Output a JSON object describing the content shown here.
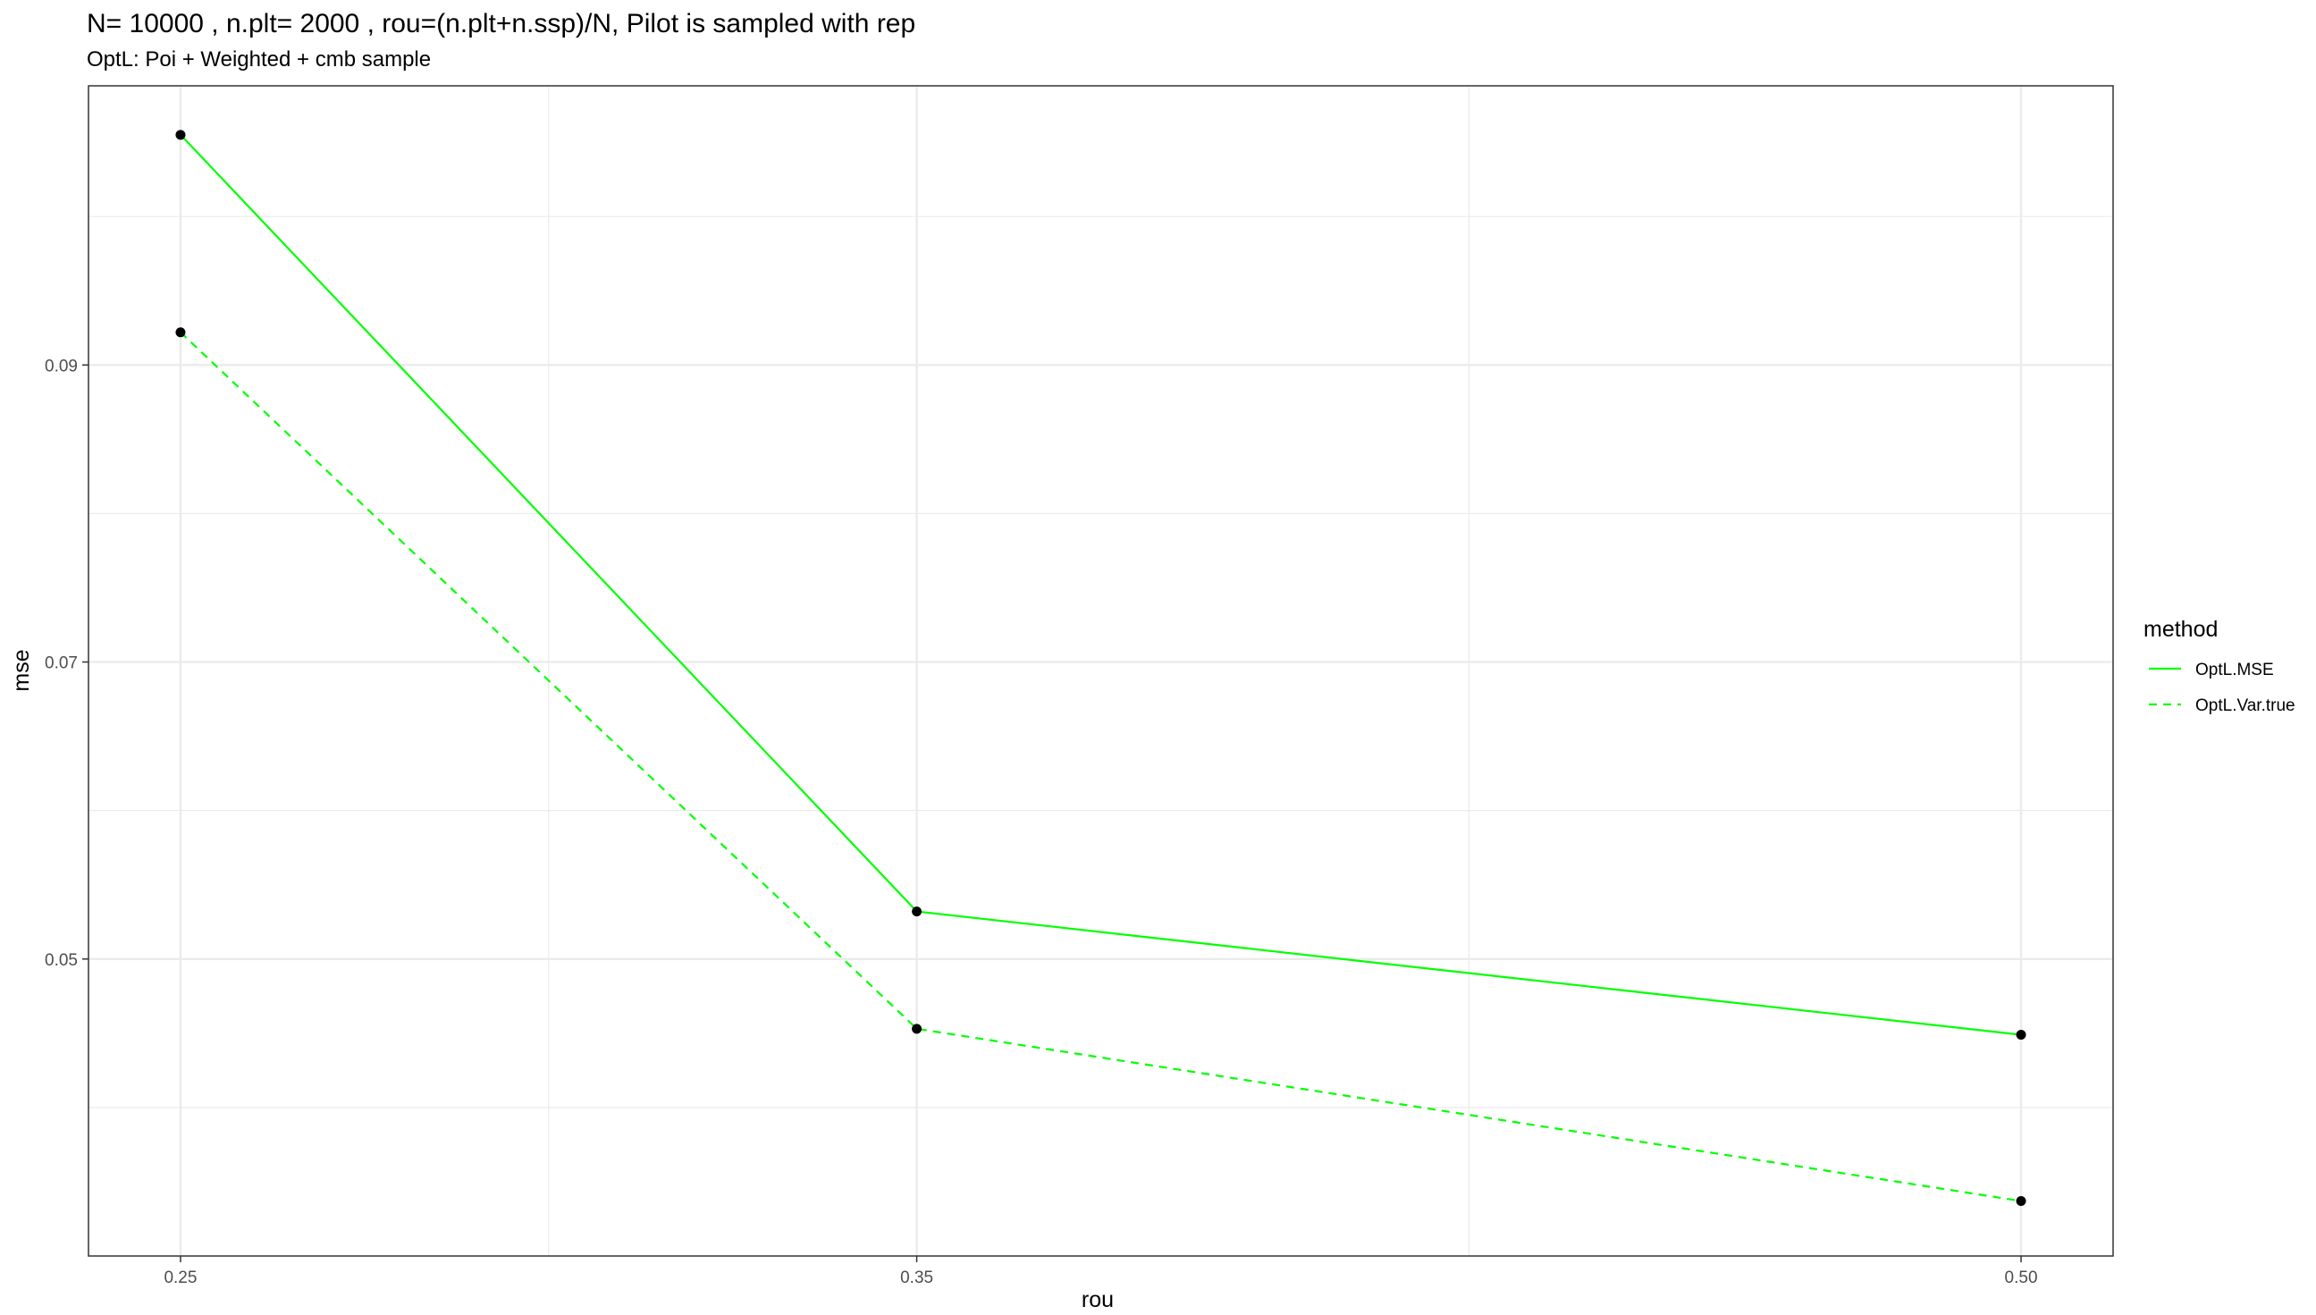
{
  "chart_data": {
    "type": "line",
    "title": "N= 10000 , n.plt= 2000  , rou=(n.plt+n.ssp)/N,  Pilot is sampled with rep",
    "subtitle": "OptL: Poi + Weighted + cmb sample",
    "xlabel": "rou",
    "ylabel": "mse",
    "x": [
      0.25,
      0.35,
      0.5
    ],
    "x_tick_labels": [
      "0.25",
      "0.35",
      "0.50"
    ],
    "y_ticks": [
      0.05,
      0.07,
      0.09
    ],
    "y_tick_labels": [
      "0.05",
      "0.07",
      "0.09"
    ],
    "xlim": [
      0.2375,
      0.5125
    ],
    "ylim": [
      0.03,
      0.1088
    ],
    "grid": true,
    "legend": {
      "title": "method",
      "placement": "right"
    },
    "series": [
      {
        "name": "OptL.MSE",
        "values": [
          0.1055,
          0.0532,
          0.0449
        ],
        "color": "#00ff00",
        "linestyle": "solid"
      },
      {
        "name": "OptL.Var.true",
        "values": [
          0.0922,
          0.0453,
          0.0337
        ],
        "color": "#00ff00",
        "linestyle": "dashed"
      }
    ],
    "point_color": "#000000",
    "panel_border_color": "#333333",
    "grid_color": "#ebebeb"
  }
}
